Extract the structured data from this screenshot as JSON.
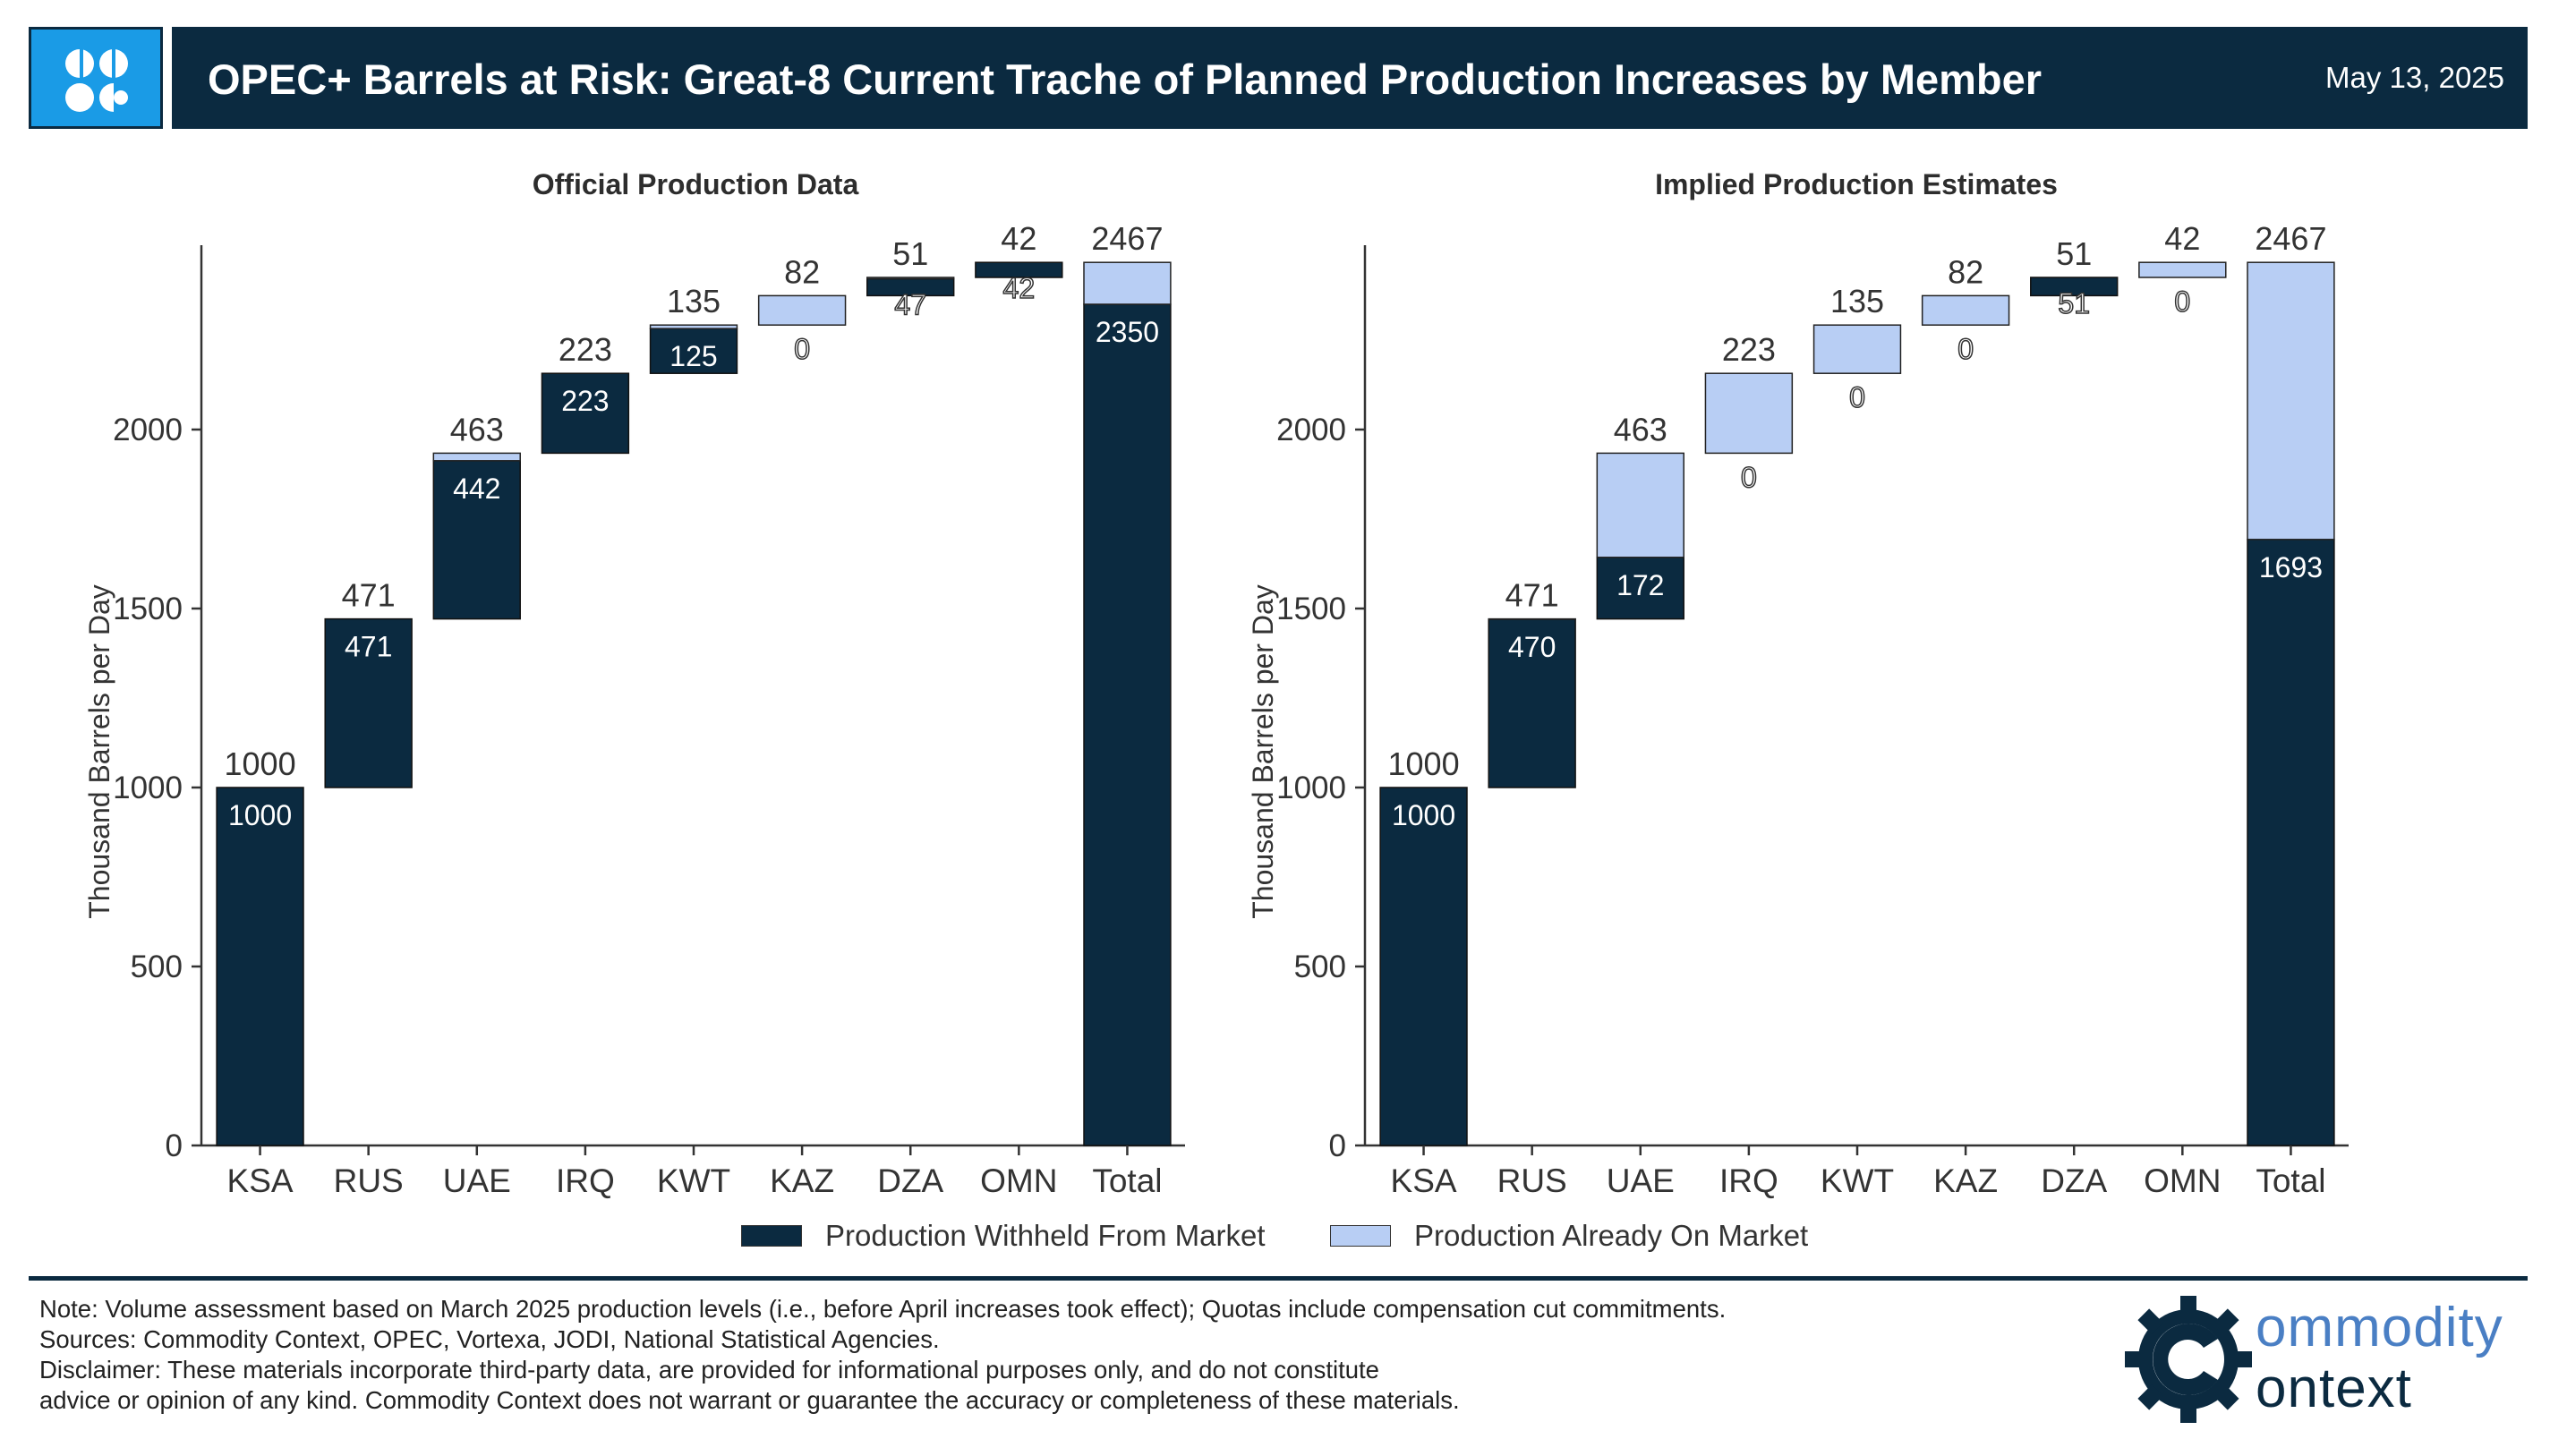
{
  "header": {
    "title": "OPEC+ Barrels at Risk: Great-8 Current Trache of Planned Production Increases by Member",
    "date": "May 13, 2025",
    "logo_icon": "opec-logo-icon"
  },
  "colors": {
    "withheld": "#0b2a40",
    "on_market": "#b8cef4",
    "header_bg": "#0b2a40",
    "logo_bg": "#1a9be6"
  },
  "chart_data": [
    {
      "type": "bar",
      "subtype": "waterfall",
      "title": "Official Production Data",
      "ylabel": "Thousand Barrels per Day",
      "xlabel": "",
      "ylim": [
        0,
        2500
      ],
      "yticks": [
        0,
        500,
        1000,
        1500,
        2000
      ],
      "categories": [
        "KSA",
        "RUS",
        "UAE",
        "IRQ",
        "KWT",
        "KAZ",
        "DZA",
        "OMN",
        "Total"
      ],
      "totals": [
        1000,
        471,
        463,
        223,
        135,
        82,
        51,
        42,
        2467
      ],
      "series": [
        {
          "name": "Production Withheld From Market",
          "values": [
            1000,
            471,
            442,
            223,
            125,
            0,
            47,
            42,
            2350
          ]
        },
        {
          "name": "Production Already On Market",
          "values": [
            0,
            0,
            21,
            0,
            10,
            82,
            4,
            0,
            117
          ]
        }
      ],
      "grid": false
    },
    {
      "type": "bar",
      "subtype": "waterfall",
      "title": "Implied Production Estimates",
      "ylabel": "Thousand Barrels per Day",
      "xlabel": "",
      "ylim": [
        0,
        2500
      ],
      "yticks": [
        0,
        500,
        1000,
        1500,
        2000
      ],
      "categories": [
        "KSA",
        "RUS",
        "UAE",
        "IRQ",
        "KWT",
        "KAZ",
        "DZA",
        "OMN",
        "Total"
      ],
      "totals": [
        1000,
        471,
        463,
        223,
        135,
        82,
        51,
        42,
        2467
      ],
      "series": [
        {
          "name": "Production Withheld From Market",
          "values": [
            1000,
            470,
            172,
            0,
            0,
            0,
            51,
            0,
            1693
          ]
        },
        {
          "name": "Production Already On Market",
          "values": [
            0,
            1,
            291,
            223,
            135,
            82,
            0,
            42,
            774
          ]
        }
      ],
      "grid": false
    }
  ],
  "legend": {
    "withheld_label": "Production Withheld From Market",
    "on_market_label": "Production Already On Market"
  },
  "footer": {
    "note": "Note: Volume assessment based on March 2025 production levels (i.e., before April increases took effect); Quotas include compensation cut commitments.",
    "sources": "Sources: Commodity Context, OPEC, Vortexa, JODI, National Statistical Agencies.",
    "disclaimer_1": "Disclaimer: These materials incorporate third-party data, are provided for informational purposes only, and do not constitute",
    "disclaimer_2": "advice or opinion of any kind. Commodity Context does not warrant or guarantee the accuracy or completeness of these materials."
  },
  "brand": {
    "line1": "ommodity",
    "line2": "ontext",
    "icon": "gear-c-logo-icon"
  }
}
